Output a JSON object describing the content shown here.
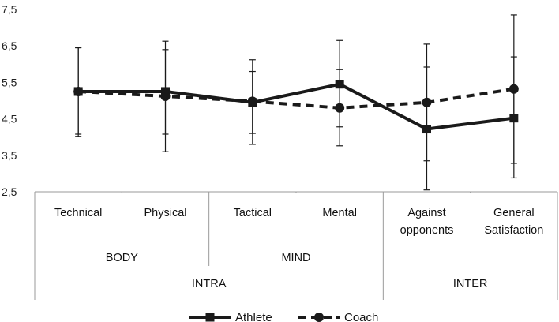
{
  "chart_data": {
    "type": "line",
    "categories": [
      "Technical",
      "Physical",
      "Tactical",
      "Mental",
      "Against opponents",
      "General Satisfaction"
    ],
    "category_lines": [
      [
        "Technical"
      ],
      [
        "Physical"
      ],
      [
        "Tactical"
      ],
      [
        "Mental"
      ],
      [
        "Against",
        "opponents"
      ],
      [
        "General",
        "Satisfaction"
      ]
    ],
    "groups_level2": [
      {
        "label": "BODY",
        "from": 0,
        "to": 1
      },
      {
        "label": "MIND",
        "from": 2,
        "to": 3
      },
      {
        "label": "",
        "from": 4,
        "to": 5
      }
    ],
    "groups_level3": [
      {
        "label": "INTRA",
        "from": 0,
        "to": 3
      },
      {
        "label": "INTER",
        "from": 4,
        "to": 5
      }
    ],
    "ylim": [
      2.5,
      7.5
    ],
    "yticks": [
      "2,5",
      "3,5",
      "4,5",
      "5,5",
      "6,5",
      "7,5"
    ],
    "ytick_values": [
      2.5,
      3.5,
      4.5,
      5.5,
      6.5,
      7.5
    ],
    "legend_position": "bottom",
    "series": [
      {
        "name": "Athlete",
        "style": "solid",
        "marker": "square",
        "values": [
          5.25,
          5.25,
          4.95,
          5.45,
          4.22,
          4.52
        ],
        "err_low": [
          4.08,
          4.08,
          4.1,
          4.28,
          2.55,
          2.88
        ],
        "err_high": [
          6.45,
          6.4,
          5.8,
          6.65,
          5.92,
          6.2
        ]
      },
      {
        "name": "Coach",
        "style": "dashed",
        "marker": "circle",
        "values": [
          5.25,
          5.12,
          4.98,
          4.8,
          4.95,
          5.32
        ],
        "err_low": [
          4.02,
          3.6,
          3.8,
          3.76,
          3.35,
          3.28
        ],
        "err_high": [
          6.45,
          6.63,
          6.12,
          5.85,
          6.55,
          7.35
        ]
      }
    ],
    "colors": {
      "line": "#1a1a1a",
      "axis": "#9a9a9a"
    }
  }
}
